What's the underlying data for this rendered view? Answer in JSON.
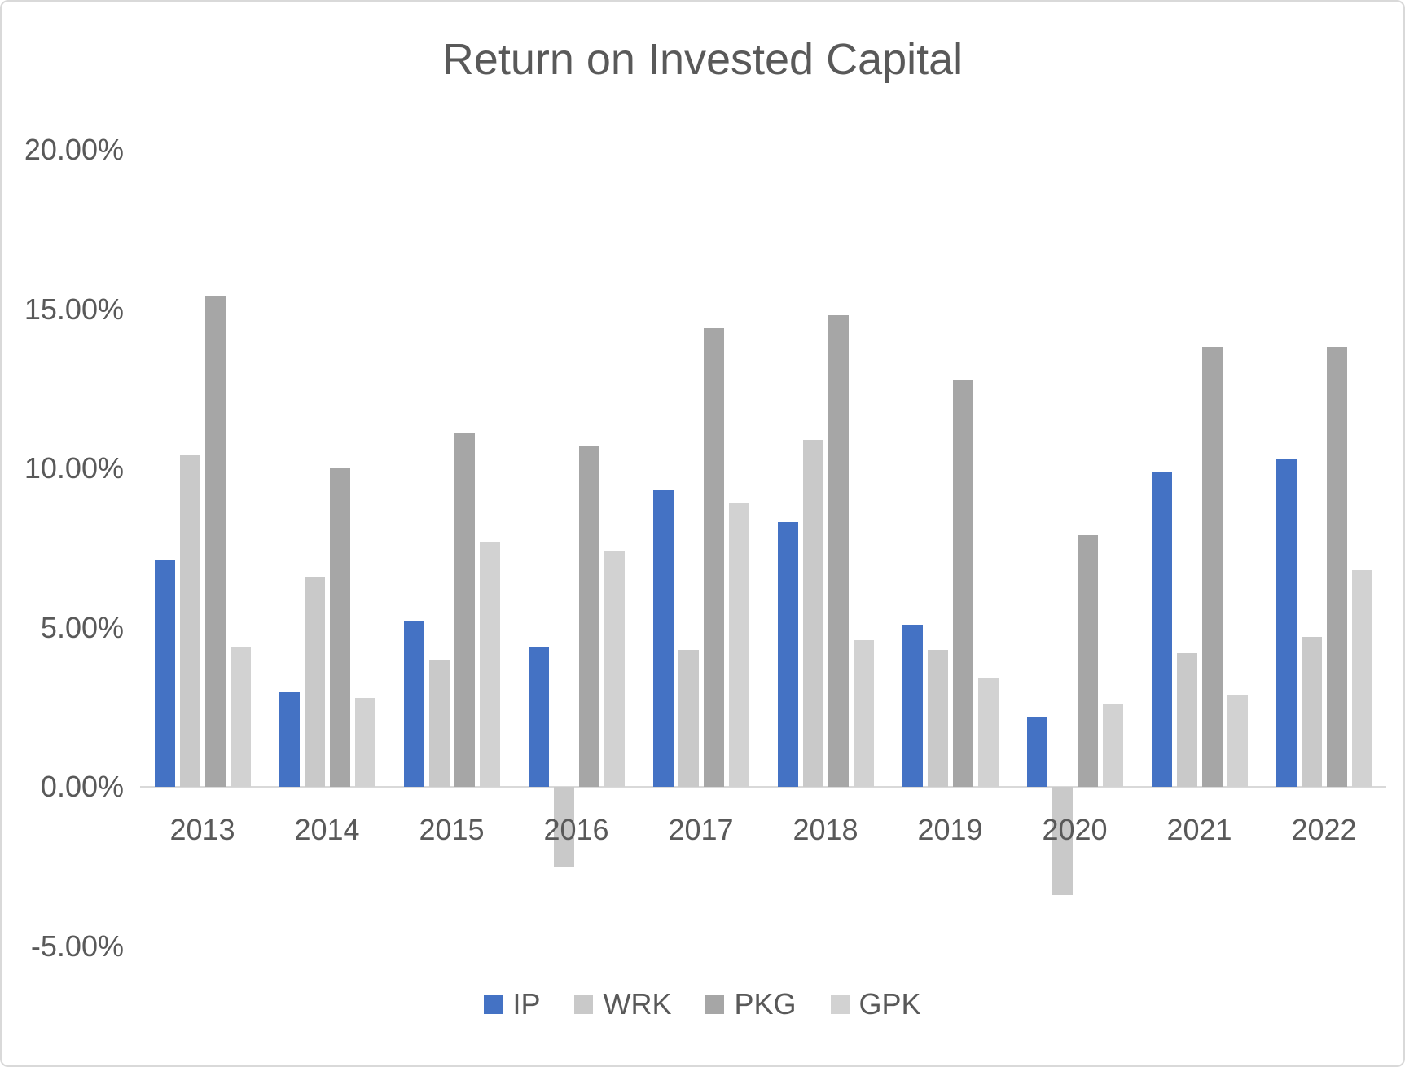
{
  "chart_data": {
    "type": "bar",
    "title": "Return on Invested Capital",
    "categories": [
      "2013",
      "2014",
      "2015",
      "2016",
      "2017",
      "2018",
      "2019",
      "2020",
      "2021",
      "2022"
    ],
    "series": [
      {
        "name": "IP",
        "color": "#4472C4",
        "values": [
          7.1,
          3.0,
          5.2,
          4.4,
          9.3,
          8.3,
          5.1,
          2.2,
          9.9,
          10.3
        ]
      },
      {
        "name": "WRK",
        "color": "#C9C9C9",
        "values": [
          10.4,
          6.6,
          4.0,
          -2.5,
          4.3,
          10.9,
          4.3,
          -3.4,
          4.2,
          4.7
        ]
      },
      {
        "name": "PKG",
        "color": "#A6A6A6",
        "values": [
          15.4,
          10.0,
          11.1,
          10.7,
          14.4,
          14.8,
          12.8,
          7.9,
          13.8,
          13.8
        ]
      },
      {
        "name": "GPK",
        "color": "#D2D2D2",
        "values": [
          4.4,
          2.8,
          7.7,
          7.4,
          8.9,
          4.6,
          3.4,
          2.6,
          2.9,
          6.8
        ]
      }
    ],
    "y_ticks": [
      {
        "label": "20.00%",
        "value": 20
      },
      {
        "label": "15.00%",
        "value": 15
      },
      {
        "label": "10.00%",
        "value": 10
      },
      {
        "label": "5.00%",
        "value": 5
      },
      {
        "label": "0.00%",
        "value": 0
      },
      {
        "label": "-5.00%",
        "value": -5
      }
    ],
    "ylim": [
      -5,
      20
    ],
    "unit": "%",
    "grid": false,
    "legend_position": "bottom",
    "axis_color": "#D9D9D9",
    "text_color": "#595959",
    "background": "#FFFFFF"
  }
}
